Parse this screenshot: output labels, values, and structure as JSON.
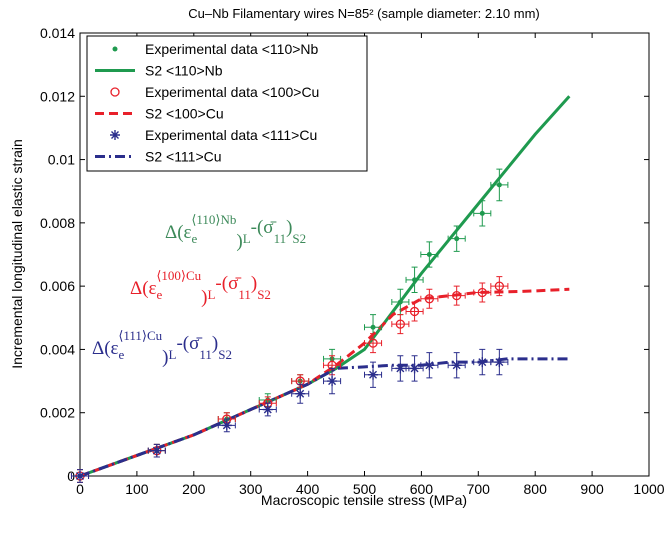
{
  "chart_data": {
    "type": "line",
    "title": "Cu–Nb Filamentary wires N=85² (sample diameter: 2.10 mm)",
    "xlabel": "Macroscopic tensile stress (MPa)",
    "ylabel": "Incremental longitudinal elastic strain",
    "xlim": [
      0,
      1000
    ],
    "ylim": [
      0,
      0.014
    ],
    "xticks": [
      0,
      100,
      200,
      300,
      400,
      500,
      600,
      700,
      800,
      900,
      1000
    ],
    "yticks": [
      0,
      0.002,
      0.004,
      0.006,
      0.008,
      0.01,
      0.012,
      0.014
    ],
    "legend": "upper left",
    "series": [
      {
        "name": "Experimental data <110>Nb",
        "color": "#1f9a4f",
        "marker": "dot",
        "x": [
          0,
          135,
          258,
          330,
          387,
          443,
          515,
          563,
          588,
          614,
          662,
          707,
          737
        ],
        "values": [
          0,
          0.0008,
          0.0018,
          0.0024,
          0.003,
          0.0037,
          0.0047,
          0.0055,
          0.0062,
          0.007,
          0.0075,
          0.0083,
          0.0092
        ],
        "xerr": [
          15,
          15,
          15,
          15,
          15,
          15,
          15,
          15,
          15,
          15,
          15,
          15,
          15
        ],
        "yerr": [
          0.0002,
          0.0002,
          0.0002,
          0.0002,
          0.0002,
          0.0003,
          0.0004,
          0.0004,
          0.0004,
          0.0004,
          0.0004,
          0.0004,
          0.0005
        ]
      },
      {
        "name": "S2 <110>Nb",
        "color": "#1f9a4f",
        "line": "solid",
        "x": [
          0,
          100,
          200,
          300,
          400,
          450,
          500,
          550,
          600,
          650,
          700,
          750,
          800,
          860
        ],
        "values": [
          0,
          0.00065,
          0.0013,
          0.0021,
          0.0029,
          0.0034,
          0.004,
          0.0052,
          0.0064,
          0.0075,
          0.0086,
          0.0097,
          0.0108,
          0.012
        ]
      },
      {
        "name": "Experimental data <100>Cu",
        "color": "#e8202a",
        "marker": "circle",
        "x": [
          0,
          135,
          258,
          330,
          387,
          443,
          515,
          563,
          588,
          614,
          662,
          707,
          737
        ],
        "values": [
          0,
          0.0008,
          0.0018,
          0.0023,
          0.003,
          0.0035,
          0.0042,
          0.0048,
          0.0052,
          0.0056,
          0.0057,
          0.0058,
          0.006
        ],
        "xerr": [
          15,
          15,
          15,
          15,
          15,
          15,
          15,
          15,
          15,
          15,
          15,
          15,
          15
        ],
        "yerr": [
          0.0002,
          0.0002,
          0.0002,
          0.0002,
          0.0002,
          0.0003,
          0.0003,
          0.0003,
          0.0003,
          0.0003,
          0.0003,
          0.0003,
          0.0003
        ]
      },
      {
        "name": "S2 <100>Cu",
        "color": "#e8202a",
        "line": "dashed",
        "x": [
          0,
          100,
          200,
          300,
          400,
          450,
          500,
          550,
          600,
          650,
          700,
          750,
          800,
          860
        ],
        "values": [
          0,
          0.00065,
          0.0013,
          0.0021,
          0.0029,
          0.0035,
          0.0042,
          0.0051,
          0.0056,
          0.0057,
          0.0058,
          0.00582,
          0.00585,
          0.0059
        ]
      },
      {
        "name": "Experimental data <111>Cu",
        "color": "#2b2e8c",
        "marker": "star",
        "x": [
          0,
          135,
          258,
          330,
          387,
          443,
          515,
          563,
          588,
          614,
          662,
          707,
          737
        ],
        "values": [
          0,
          0.0008,
          0.0016,
          0.0021,
          0.0026,
          0.003,
          0.0032,
          0.0034,
          0.0034,
          0.0035,
          0.0035,
          0.0036,
          0.0036
        ],
        "xerr": [
          15,
          15,
          15,
          15,
          15,
          15,
          15,
          15,
          15,
          15,
          15,
          15,
          15
        ],
        "yerr": [
          0.0002,
          0.0002,
          0.0002,
          0.0002,
          0.0003,
          0.0004,
          0.0004,
          0.0004,
          0.0004,
          0.0004,
          0.0004,
          0.0004,
          0.0004
        ]
      },
      {
        "name": "S2 <111>Cu",
        "color": "#2b2e8c",
        "line": "dashdot",
        "x": [
          0,
          100,
          200,
          300,
          400,
          450,
          500,
          550,
          600,
          650,
          700,
          750,
          800,
          860
        ],
        "values": [
          0,
          0.00065,
          0.0013,
          0.0021,
          0.0029,
          0.0034,
          0.00345,
          0.0035,
          0.0035,
          0.0036,
          0.0036,
          0.0037,
          0.0037,
          0.0037
        ]
      }
    ],
    "annotations": [
      {
        "color": "#3d8a5a",
        "parts": [
          "Δ(ε",
          "e",
          "⟨110⟩Nb",
          ")",
          "L",
          "-(σ̄",
          "11",
          ")",
          "S2"
        ]
      },
      {
        "color": "#e8202a",
        "parts": [
          "Δ(ε",
          "e",
          "⟨100⟩Cu",
          ")",
          "L",
          "-(σ̄",
          "11",
          ")",
          "S2"
        ]
      },
      {
        "color": "#2b2e8c",
        "parts": [
          "Δ(ε",
          "e",
          "⟨111⟩Cu",
          ")",
          "L",
          "-(σ̄",
          "11",
          ")",
          "S2"
        ]
      }
    ]
  }
}
